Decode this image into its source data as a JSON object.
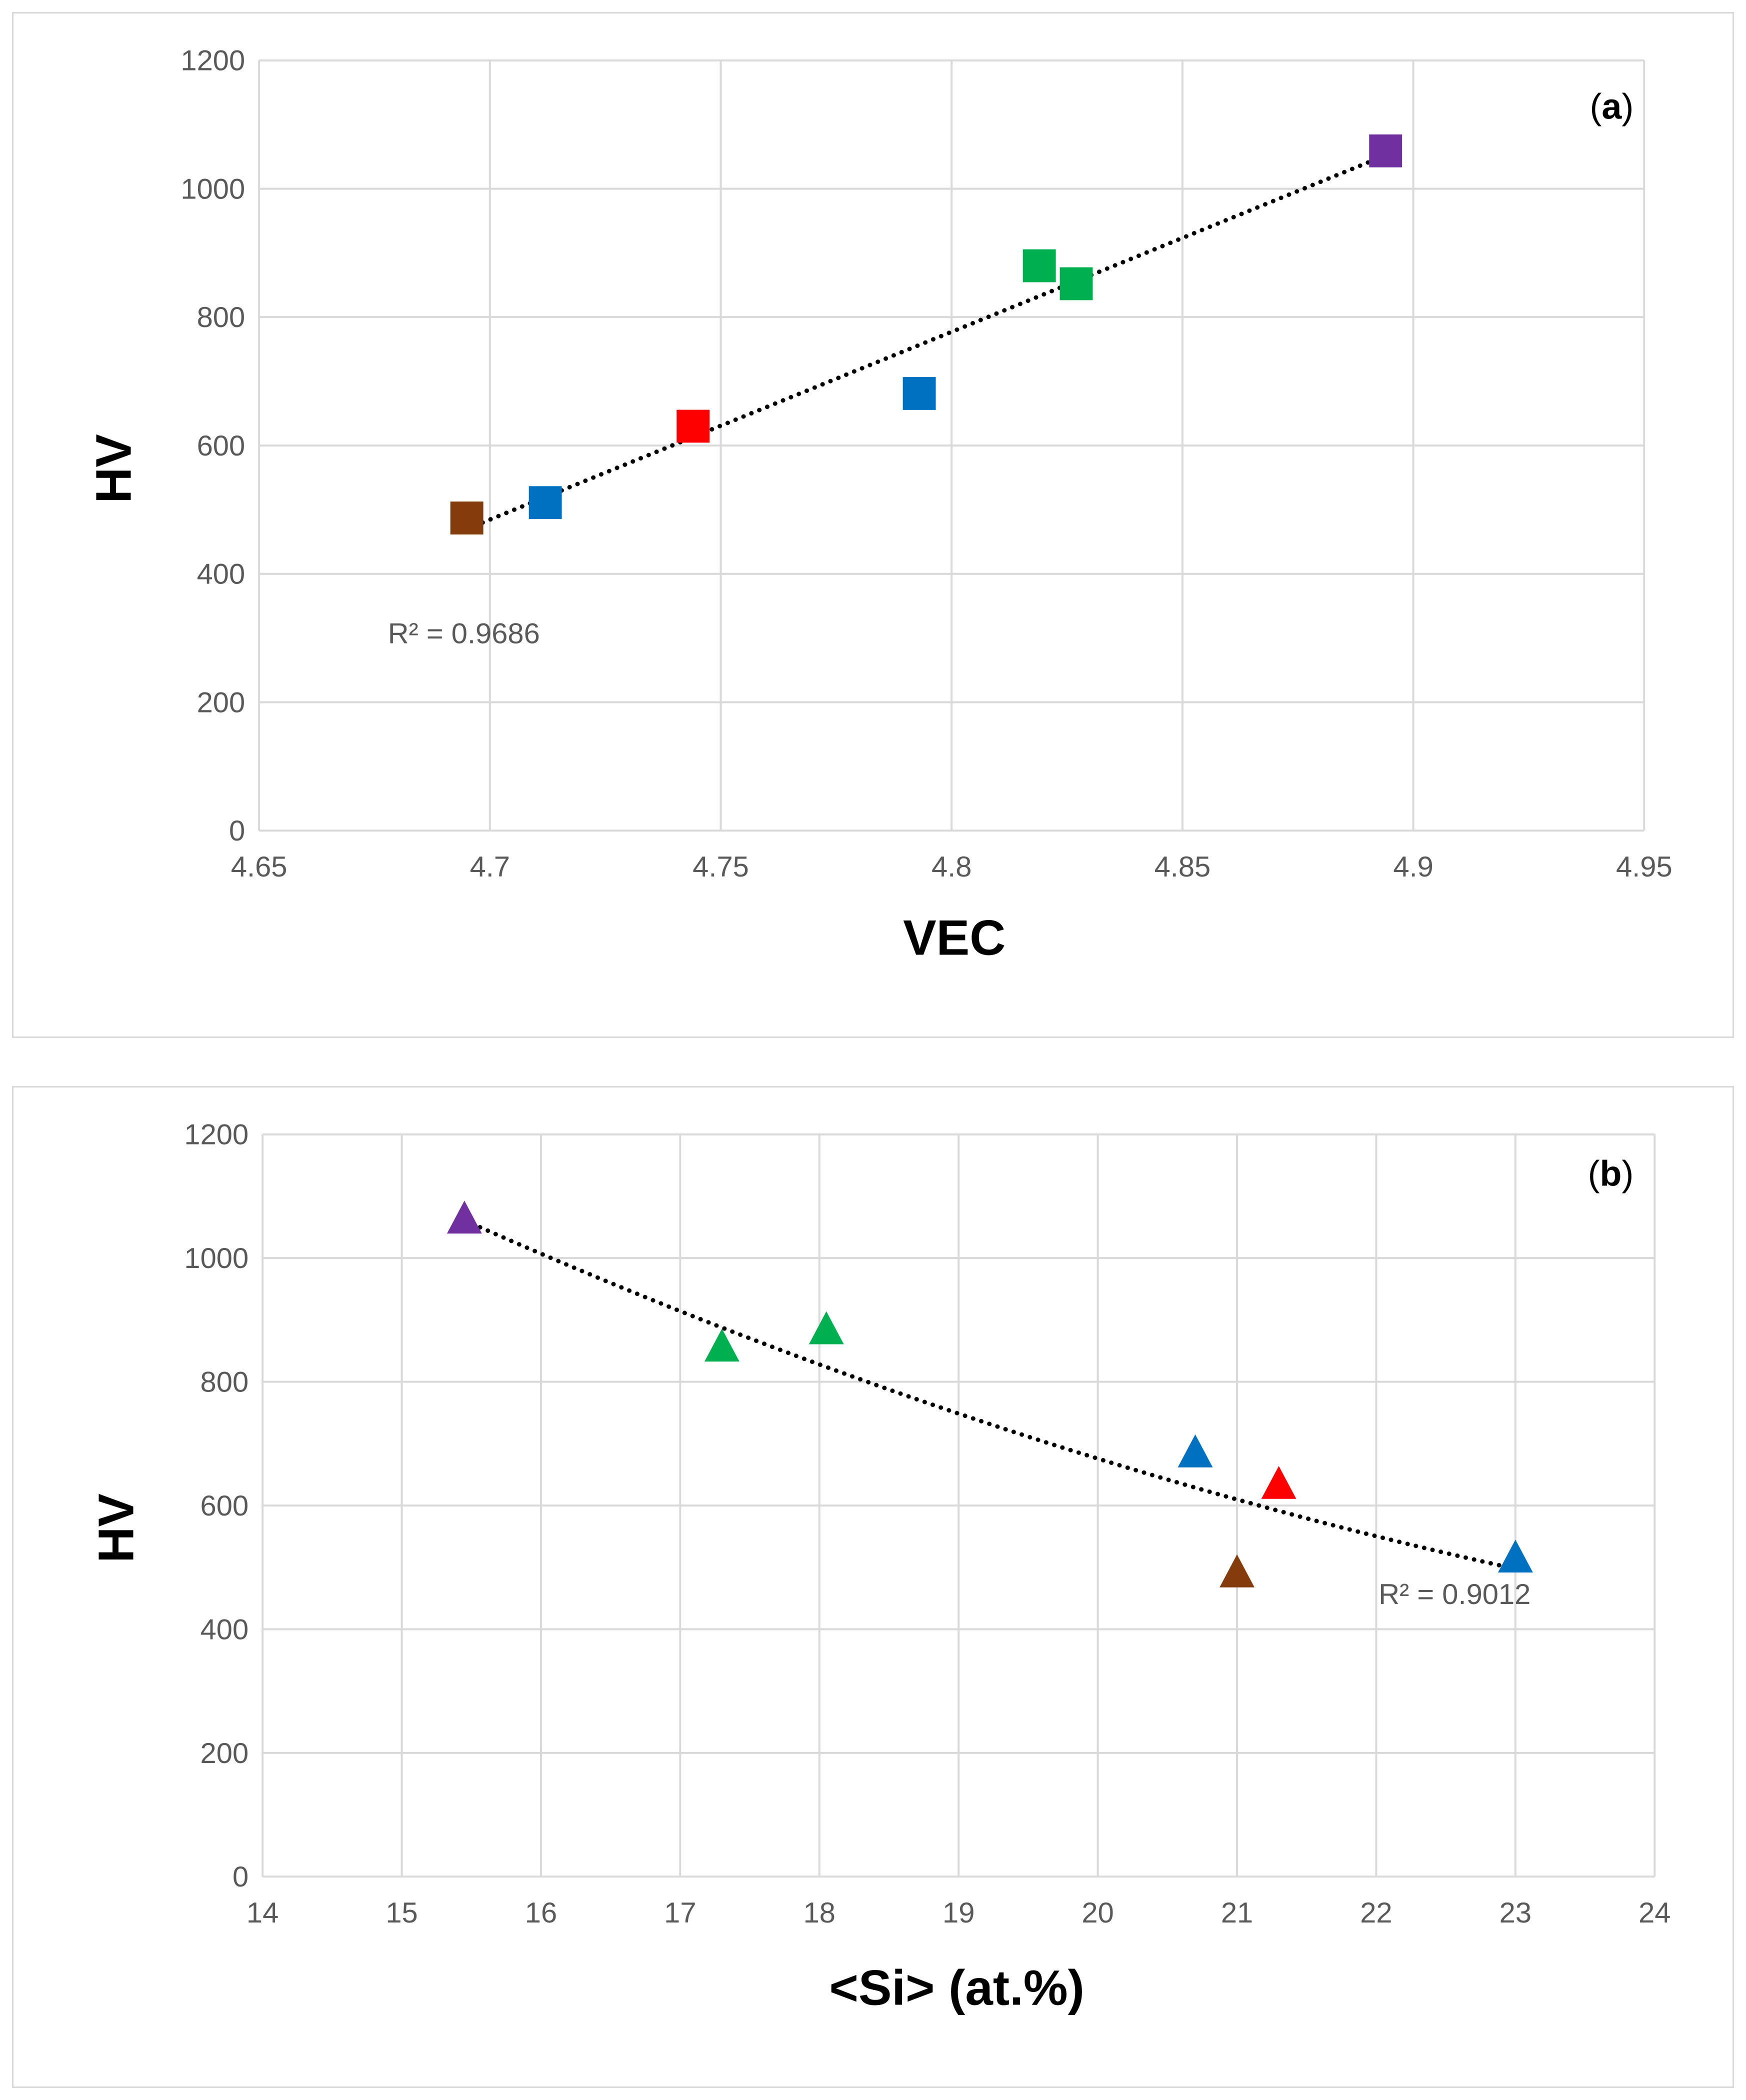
{
  "chart_data": [
    {
      "id": "a",
      "type": "scatter",
      "panel_label_open": "(",
      "panel_label": "a",
      "panel_label_close": ")",
      "xlabel": "VEC",
      "ylabel": "HV",
      "xlim": [
        4.65,
        4.95
      ],
      "ylim": [
        0,
        1200
      ],
      "x_ticks": [
        4.65,
        4.7,
        4.75,
        4.8,
        4.85,
        4.9,
        4.95
      ],
      "x_tick_labels": [
        "4.65",
        "4.7",
        "4.75",
        "4.8",
        "4.85",
        "4.9",
        "4.95"
      ],
      "y_ticks": [
        0,
        200,
        400,
        600,
        800,
        1000,
        1200
      ],
      "y_tick_labels": [
        "0",
        "200",
        "400",
        "600",
        "800",
        "1000",
        "1200"
      ],
      "marker": "square",
      "points": [
        {
          "x": 4.695,
          "y": 487,
          "color": "#843c0c"
        },
        {
          "x": 4.712,
          "y": 511,
          "color": "#0070c0"
        },
        {
          "x": 4.744,
          "y": 630,
          "color": "#ff0000"
        },
        {
          "x": 4.793,
          "y": 681,
          "color": "#0070c0"
        },
        {
          "x": 4.819,
          "y": 880,
          "color": "#00b050"
        },
        {
          "x": 4.827,
          "y": 852,
          "color": "#00b050"
        },
        {
          "x": 4.894,
          "y": 1059,
          "color": "#7030a0"
        }
      ],
      "trendline": {
        "type": "linear",
        "x_range": [
          4.695,
          4.894
        ],
        "r2_label": "R² = 0.9686"
      }
    },
    {
      "id": "b",
      "type": "scatter",
      "panel_label_open": "(",
      "panel_label": "b",
      "panel_label_close": ")",
      "xlabel": "<Si> (at.%)",
      "ylabel": "HV",
      "xlim": [
        14,
        24
      ],
      "ylim": [
        0,
        1200
      ],
      "x_ticks": [
        14,
        15,
        16,
        17,
        18,
        19,
        20,
        21,
        22,
        23,
        24
      ],
      "x_tick_labels": [
        "14",
        "15",
        "16",
        "17",
        "18",
        "19",
        "20",
        "21",
        "22",
        "23",
        "24"
      ],
      "y_ticks": [
        0,
        200,
        400,
        600,
        800,
        1000,
        1200
      ],
      "y_tick_labels": [
        "0",
        "200",
        "400",
        "600",
        "800",
        "1000",
        "1200"
      ],
      "marker": "triangle",
      "points": [
        {
          "x": 15.45,
          "y": 1059,
          "color": "#7030a0"
        },
        {
          "x": 17.3,
          "y": 852,
          "color": "#00b050"
        },
        {
          "x": 18.05,
          "y": 880,
          "color": "#00b050"
        },
        {
          "x": 20.7,
          "y": 681,
          "color": "#0070c0"
        },
        {
          "x": 21.3,
          "y": 630,
          "color": "#ff0000"
        },
        {
          "x": 21.0,
          "y": 487,
          "color": "#843c0c"
        },
        {
          "x": 23.0,
          "y": 511,
          "color": "#0070c0"
        }
      ],
      "trendline": {
        "type": "polynomial",
        "x_range": [
          15.45,
          23.0
        ],
        "r2_label": "R² = 0.9012"
      }
    }
  ]
}
